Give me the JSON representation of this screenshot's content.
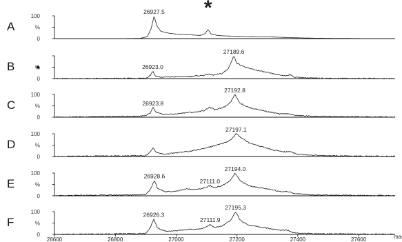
{
  "chart_data": {
    "type": "line",
    "xlabel": "mass",
    "xlim": [
      26600,
      27720
    ],
    "ylim": [
      0,
      100
    ],
    "x_ticks": [
      26600,
      26800,
      27000,
      27200,
      27400,
      27600
    ],
    "x_tick_labels": [
      "26600",
      "26800",
      "27000",
      "27200",
      "27400",
      "27600"
    ],
    "y_tick_labels": [
      "100",
      "%",
      "0"
    ],
    "annotations": [
      {
        "panel": "A",
        "text": "*",
        "x": 27105
      }
    ],
    "panels": [
      {
        "label": "A",
        "y_tick_labels": [
          "100",
          "%",
          "0"
        ],
        "peak_labels": [
          {
            "x": 26927.5,
            "y": 100,
            "text": "26927.5"
          }
        ],
        "series": [
          {
            "x": [
              26600,
              26700,
              26800,
              26880,
              26905,
              26918,
              26927.5,
              26937,
              26950,
              26975,
              27000,
              27040,
              27080,
              27095,
              27105,
              27115,
              27140,
              27200,
              27260,
              27320,
              27380,
              27450,
              27550,
              27650,
              27720
            ],
            "y": [
              0,
              0,
              0,
              1,
              8,
              45,
              100,
              55,
              32,
              24,
              20,
              17,
              14,
              22,
              40,
              20,
              13,
              10,
              8,
              7,
              4,
              2,
              1,
              0,
              0
            ]
          }
        ]
      },
      {
        "label": "B",
        "y_tick_labels": [
          "",
          "%",
          "0"
        ],
        "peak_labels": [
          {
            "x": 26923.0,
            "y": 33,
            "text": "26923.0"
          },
          {
            "x": 27189.6,
            "y": 100,
            "text": "27189.6"
          }
        ],
        "series": [
          {
            "x": [
              26600,
              26700,
              26850,
              26900,
              26915,
              26923,
              26932,
              26950,
              27000,
              27050,
              27090,
              27105,
              27120,
              27150,
              27170,
              27182,
              27189.6,
              27200,
              27230,
              27280,
              27330,
              27360,
              27372,
              27390,
              27450,
              27550,
              27720
            ],
            "y": [
              0,
              0,
              1,
              2,
              14,
              33,
              12,
              6,
              8,
              10,
              14,
              20,
              15,
              22,
              40,
              75,
              100,
              68,
              48,
              32,
              18,
              12,
              18,
              6,
              2,
              1,
              0
            ]
          }
        ]
      },
      {
        "label": "C",
        "y_tick_labels": [
          "100",
          "%",
          "0"
        ],
        "peak_labels": [
          {
            "x": 26923.8,
            "y": 42,
            "text": "26923.8"
          },
          {
            "x": 27192.8,
            "y": 100,
            "text": "27192.8"
          }
        ],
        "series": [
          {
            "x": [
              26600,
              26700,
              26850,
              26900,
              26915,
              26923.8,
              26935,
              26960,
              27000,
              27030,
              27060,
              27090,
              27110,
              27130,
              27160,
              27180,
              27192.8,
              27210,
              27240,
              27290,
              27340,
              27370,
              27390,
              27450,
              27550,
              27720
            ],
            "y": [
              0,
              2,
              4,
              6,
              18,
              42,
              20,
              12,
              14,
              20,
              22,
              28,
              44,
              32,
              46,
              68,
              100,
              62,
              42,
              28,
              14,
              16,
              8,
              4,
              2,
              1
            ]
          }
        ]
      },
      {
        "label": "D",
        "y_tick_labels": [
          "100",
          "%",
          "0"
        ],
        "peak_labels": [
          {
            "x": 27197.1,
            "y": 100,
            "text": "27197.1"
          }
        ],
        "series": [
          {
            "x": [
              26600,
              26700,
              26850,
              26900,
              26915,
              26925,
              26935,
              26960,
              27000,
              27050,
              27100,
              27140,
              27170,
              27185,
              27197.1,
              27215,
              27240,
              27280,
              27320,
              27360,
              27375,
              27400,
              27480,
              27560,
              27720
            ],
            "y": [
              0,
              2,
              3,
              4,
              20,
              38,
              18,
              10,
              16,
              24,
              38,
              52,
              66,
              80,
              100,
              82,
              60,
              44,
              28,
              20,
              22,
              10,
              4,
              2,
              1
            ]
          }
        ]
      },
      {
        "label": "E",
        "y_tick_labels": [
          "100",
          "%",
          "0"
        ],
        "peak_labels": [
          {
            "x": 26928.6,
            "y": 68,
            "text": "26928.6"
          },
          {
            "x": 27111.0,
            "y": 45,
            "text": "27111.0"
          },
          {
            "x": 27194.0,
            "y": 100,
            "text": "27194.0"
          }
        ],
        "series": [
          {
            "x": [
              26600,
              26700,
              26850,
              26900,
              26916,
              26928.6,
              26940,
              26965,
              27000,
              27030,
              27070,
              27098,
              27111,
              27125,
              27150,
              27178,
              27194,
              27210,
              27240,
              27290,
              27340,
              27370,
              27390,
              27450,
              27550,
              27720
            ],
            "y": [
              0,
              2,
              4,
              6,
              30,
              68,
              30,
              18,
              20,
              30,
              28,
              36,
              45,
              36,
              44,
              66,
              100,
              66,
              44,
              32,
              20,
              18,
              10,
              4,
              2,
              1
            ]
          }
        ]
      },
      {
        "label": "F",
        "y_tick_labels": [
          "100",
          "%",
          "0"
        ],
        "peak_labels": [
          {
            "x": 26926.3,
            "y": 68,
            "text": "26926.3"
          },
          {
            "x": 27111.9,
            "y": 45,
            "text": "27111.9"
          },
          {
            "x": 27195.3,
            "y": 100,
            "text": "27195.3"
          }
        ],
        "series": [
          {
            "x": [
              26600,
              26700,
              26850,
              26900,
              26914,
              26926.3,
              26938,
              26965,
              27000,
              27040,
              27080,
              27100,
              27111.9,
              27125,
              27150,
              27180,
              27195.3,
              27212,
              27240,
              27290,
              27340,
              27365,
              27385,
              27450,
              27550,
              27720
            ],
            "y": [
              0,
              1,
              3,
              4,
              28,
              68,
              28,
              14,
              16,
              22,
              24,
              34,
              45,
              30,
              36,
              62,
              100,
              60,
              40,
              30,
              18,
              20,
              8,
              3,
              2,
              1
            ]
          }
        ]
      }
    ]
  }
}
